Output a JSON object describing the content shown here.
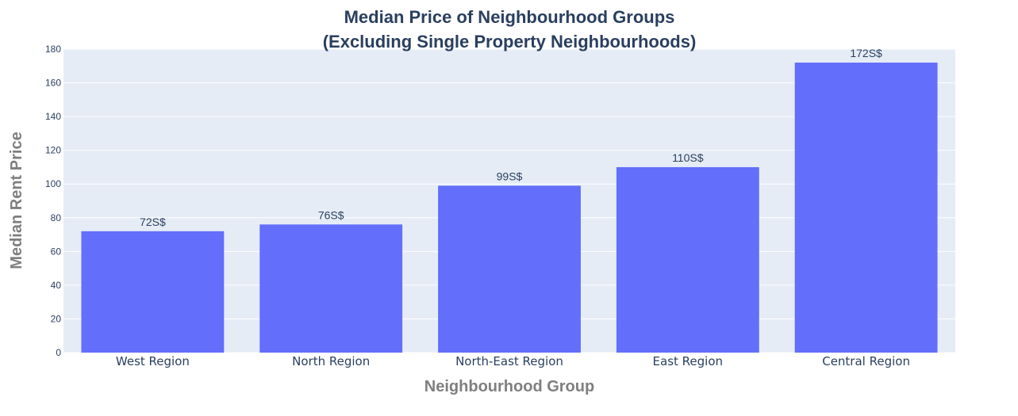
{
  "colors": {
    "plot_background": "#e5ecf6",
    "grid": "#ffffff",
    "bar": "#636efa",
    "title": "#2a3f5f",
    "axis_title": "#7f7f7f"
  },
  "chart_data": {
    "type": "bar",
    "title_lines": [
      "Median Price of Neighbourhood Groups",
      "(Excluding Single Property Neighbourhoods)"
    ],
    "xlabel": "Neighbourhood Group",
    "ylabel": "Median Rent Price",
    "categories": [
      "West Region",
      "North Region",
      "North-East Region",
      "East Region",
      "Central Region"
    ],
    "values": [
      72,
      76,
      99,
      110,
      172
    ],
    "data_labels": [
      "72S$",
      "76S$",
      "99S$",
      "110S$",
      "172S$"
    ],
    "ylim": [
      0,
      180
    ],
    "yticks": [
      0,
      20,
      40,
      60,
      80,
      100,
      120,
      140,
      160,
      180
    ],
    "grid": true,
    "legend": "none"
  }
}
